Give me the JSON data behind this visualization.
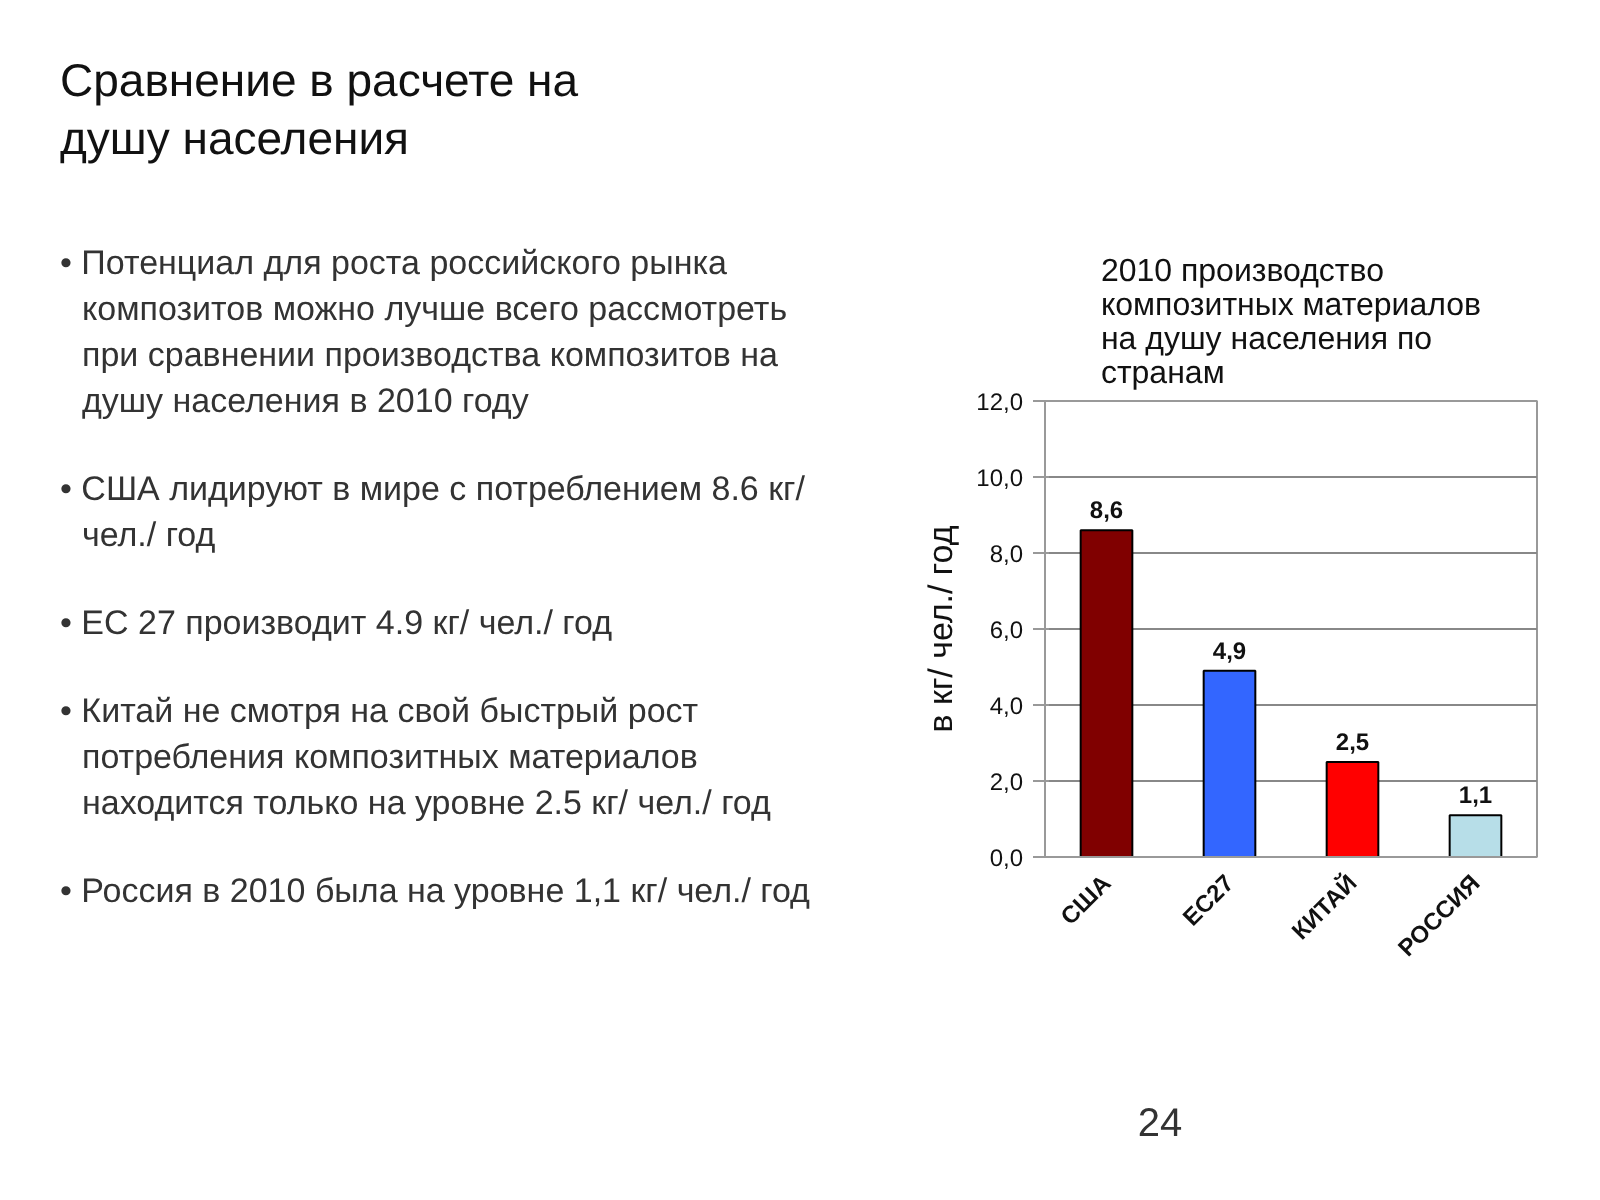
{
  "chart_data": [
    {
      "type": "other",
      "title": "Сравнение в расчете на душу населения",
      "annotations": [
        "• Потенциал для роста российского рынка композитов можно лучше всего рассмотреть при сравнении производства композитов на душу населения в 2010 году",
        "• США лидируют в мире с потреблением 8.6 кг/ чел./ год",
        "• ЕС 27 производит 4.9 кг/ чел./ год",
        "• Китай не смотря на свой быстрый рост потребления композитных материалов находится только на уровне 2.5 кг/ чел./ год",
        "• Россия в 2010 была на уровне 1,1 кг/ чел./ год"
      ]
    },
    {
      "type": "bar",
      "title": "2010 производство композитных материалов на душу населения по странам",
      "ylabel": "в кг/ чел./ год",
      "categories": [
        "США",
        "ЕС27",
        "КИТАЙ",
        "РОССИЯ"
      ],
      "values": [
        8.6,
        4.9,
        2.5,
        1.1
      ],
      "colors": [
        "#800000",
        "#3366ff",
        "#ff0000",
        "#b7dee8"
      ],
      "value_labels": [
        "8,6",
        "4,9",
        "2,5",
        "1,1"
      ],
      "ylim": [
        0,
        12
      ],
      "yticks": [
        {
          "value": 0,
          "label": "0,0"
        },
        {
          "value": 2,
          "label": "2,0"
        },
        {
          "value": 4,
          "label": "4,0"
        },
        {
          "value": 6,
          "label": "6,0"
        },
        {
          "value": 8,
          "label": "8,0"
        },
        {
          "value": 10,
          "label": "10,0"
        },
        {
          "value": 12,
          "label": "12,0"
        }
      ],
      "grid": "y",
      "annotations": [
        "24"
      ]
    }
  ]
}
